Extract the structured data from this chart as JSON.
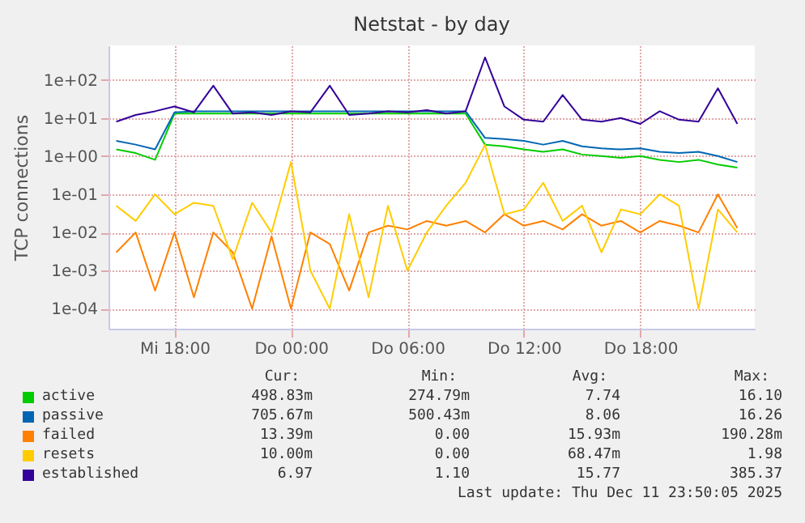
{
  "chart_data": {
    "type": "line",
    "title": "Netstat - by day",
    "ylabel": "TCP connections",
    "x": [
      "2025-12-10T15:00",
      "2025-12-10T16:00",
      "2025-12-10T17:00",
      "2025-12-10T18:00",
      "2025-12-10T19:00",
      "2025-12-10T20:00",
      "2025-12-10T21:00",
      "2025-12-10T22:00",
      "2025-12-10T23:00",
      "2025-12-11T00:00",
      "2025-12-11T01:00",
      "2025-12-11T02:00",
      "2025-12-11T03:00",
      "2025-12-11T04:00",
      "2025-12-11T05:00",
      "2025-12-11T06:00",
      "2025-12-11T07:00",
      "2025-12-11T08:00",
      "2025-12-11T09:00",
      "2025-12-11T10:00",
      "2025-12-11T11:00",
      "2025-12-11T12:00",
      "2025-12-11T13:00",
      "2025-12-11T14:00",
      "2025-12-11T15:00",
      "2025-12-11T16:00",
      "2025-12-11T17:00",
      "2025-12-11T18:00",
      "2025-12-11T19:00",
      "2025-12-11T20:00",
      "2025-12-11T21:00",
      "2025-12-11T22:00",
      "2025-12-11T23:00"
    ],
    "xlim": [
      "2025-12-10T14:36",
      "2025-12-11T23:54"
    ],
    "xticks": [
      {
        "value": "2025-12-10T18:00",
        "label": "Mi 18:00"
      },
      {
        "value": "2025-12-11T00:00",
        "label": "Do 00:00"
      },
      {
        "value": "2025-12-11T06:00",
        "label": "Do 06:00"
      },
      {
        "value": "2025-12-11T12:00",
        "label": "Do 12:00"
      },
      {
        "value": "2025-12-11T18:00",
        "label": "Do 18:00"
      }
    ],
    "log": "y",
    "ylim": [
      3e-05,
      800
    ],
    "yticks": [
      {
        "value": 0.0001,
        "label": "1e-04"
      },
      {
        "value": 0.001,
        "label": "1e-03"
      },
      {
        "value": 0.01,
        "label": "1e-02"
      },
      {
        "value": 0.1,
        "label": "1e-01"
      },
      {
        "value": 1,
        "label": "1e+00"
      },
      {
        "value": 10,
        "label": "1e+01"
      },
      {
        "value": 100,
        "label": "1e+02"
      }
    ],
    "grid": true,
    "legend": "bottom",
    "series": [
      {
        "name": "active",
        "color": "#00cc00",
        "values": [
          1.5,
          1.2,
          0.8,
          13,
          13,
          13,
          13,
          13,
          13,
          13,
          13,
          13,
          13,
          13,
          13,
          13,
          13,
          13,
          13,
          2,
          1.8,
          1.5,
          1.3,
          1.5,
          1.1,
          1,
          0.9,
          1,
          0.8,
          0.7,
          0.8,
          0.6,
          0.5
        ]
      },
      {
        "name": "passive",
        "color": "#0066b3",
        "values": [
          2.5,
          2,
          1.5,
          14,
          15,
          15,
          15,
          15,
          15,
          15,
          15,
          15,
          15,
          15,
          15,
          15,
          15,
          15,
          15,
          3,
          2.8,
          2.5,
          2,
          2.5,
          1.8,
          1.6,
          1.5,
          1.6,
          1.3,
          1.2,
          1.3,
          1,
          0.7
        ]
      },
      {
        "name": "failed",
        "color": "#ff8000",
        "values": [
          0.003,
          0.01,
          0.0003,
          0.01,
          0.0002,
          0.01,
          0.003,
          0.0001,
          0.008,
          0.0001,
          0.01,
          0.005,
          0.0003,
          0.01,
          0.015,
          0.012,
          0.02,
          0.015,
          0.02,
          0.01,
          0.03,
          0.015,
          0.02,
          0.012,
          0.03,
          0.015,
          0.02,
          0.01,
          0.02,
          0.015,
          0.01,
          0.1,
          0.013
        ]
      },
      {
        "name": "resets",
        "color": "#ffcc00",
        "values": [
          0.05,
          0.02,
          0.1,
          0.03,
          0.06,
          0.05,
          0.002,
          0.06,
          0.01,
          0.7,
          0.001,
          0.0001,
          0.03,
          0.0002,
          0.05,
          0.001,
          0.01,
          0.05,
          0.2,
          1.98,
          0.03,
          0.04,
          0.2,
          0.02,
          0.05,
          0.003,
          0.04,
          0.03,
          0.1,
          0.05,
          0.0001,
          0.04,
          0.01
        ]
      },
      {
        "name": "established",
        "color": "#330099",
        "values": [
          8,
          12,
          15,
          20,
          14,
          70,
          13,
          14,
          12,
          15,
          14,
          70,
          12,
          13,
          15,
          14,
          16,
          13,
          15,
          385,
          20,
          9,
          8,
          40,
          9,
          8,
          10,
          7,
          15,
          9,
          8,
          60,
          7
        ]
      }
    ],
    "annotations": [
      "Cur:",
      "Min:",
      "Avg:",
      "Max:",
      "498.83m",
      "274.79m",
      "7.74",
      "16.10",
      "705.67m",
      "500.43m",
      "8.06",
      "16.26",
      "13.39m",
      "0.00",
      "15.93m",
      "190.28m",
      "10.00m",
      "0.00",
      "68.47m",
      "1.98",
      "6.97",
      "1.10",
      "15.77",
      "385.37",
      "Last update: Thu Dec 11 23:50:05 2025"
    ]
  }
}
